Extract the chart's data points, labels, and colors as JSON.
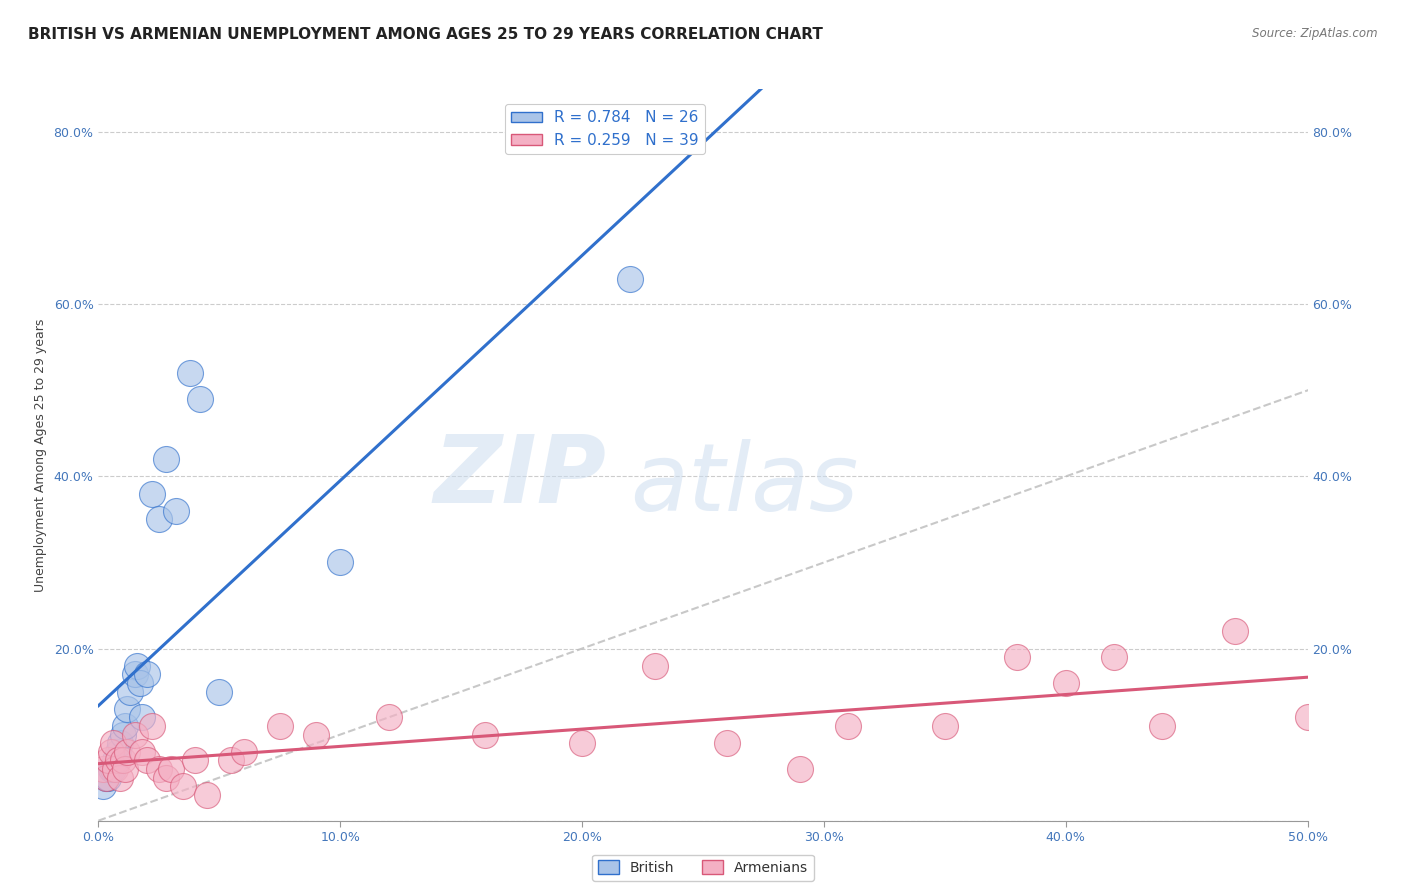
{
  "title": "BRITISH VS ARMENIAN UNEMPLOYMENT AMONG AGES 25 TO 29 YEARS CORRELATION CHART",
  "source": "Source: ZipAtlas.com",
  "ylabel": "Unemployment Among Ages 25 to 29 years",
  "xlim": [
    0.0,
    0.5
  ],
  "ylim": [
    0.0,
    0.85
  ],
  "british_R": "0.784",
  "british_N": "26",
  "armenian_R": "0.259",
  "armenian_N": "39",
  "british_color": "#aac4e8",
  "british_line_color": "#3070cc",
  "armenian_color": "#f4b0c4",
  "armenian_line_color": "#d85878",
  "diagonal_color": "#bbbbbb",
  "background_color": "#ffffff",
  "grid_color": "#cccccc",
  "tick_color": "#4477bb",
  "british_x": [
    0.002,
    0.003,
    0.004,
    0.005,
    0.006,
    0.007,
    0.008,
    0.009,
    0.01,
    0.011,
    0.012,
    0.013,
    0.015,
    0.016,
    0.017,
    0.018,
    0.02,
    0.022,
    0.025,
    0.028,
    0.032,
    0.038,
    0.042,
    0.05,
    0.1,
    0.22
  ],
  "british_y": [
    0.04,
    0.05,
    0.05,
    0.06,
    0.06,
    0.07,
    0.08,
    0.09,
    0.1,
    0.11,
    0.13,
    0.15,
    0.17,
    0.18,
    0.16,
    0.12,
    0.17,
    0.38,
    0.35,
    0.42,
    0.36,
    0.52,
    0.49,
    0.15,
    0.3,
    0.63
  ],
  "armenian_x": [
    0.002,
    0.003,
    0.004,
    0.005,
    0.006,
    0.007,
    0.008,
    0.009,
    0.01,
    0.011,
    0.012,
    0.015,
    0.018,
    0.02,
    0.022,
    0.025,
    0.028,
    0.03,
    0.035,
    0.04,
    0.045,
    0.055,
    0.06,
    0.075,
    0.09,
    0.12,
    0.16,
    0.2,
    0.23,
    0.26,
    0.29,
    0.31,
    0.35,
    0.38,
    0.4,
    0.42,
    0.44,
    0.47,
    0.5
  ],
  "armenian_y": [
    0.06,
    0.05,
    0.07,
    0.08,
    0.09,
    0.06,
    0.07,
    0.05,
    0.07,
    0.06,
    0.08,
    0.1,
    0.08,
    0.07,
    0.11,
    0.06,
    0.05,
    0.06,
    0.04,
    0.07,
    0.03,
    0.07,
    0.08,
    0.11,
    0.1,
    0.12,
    0.1,
    0.09,
    0.18,
    0.09,
    0.06,
    0.11,
    0.11,
    0.19,
    0.16,
    0.19,
    0.11,
    0.22,
    0.12
  ],
  "watermark_zip": "ZIP",
  "watermark_atlas": "atlas",
  "title_fontsize": 11,
  "axis_fontsize": 9,
  "tick_fontsize": 9
}
